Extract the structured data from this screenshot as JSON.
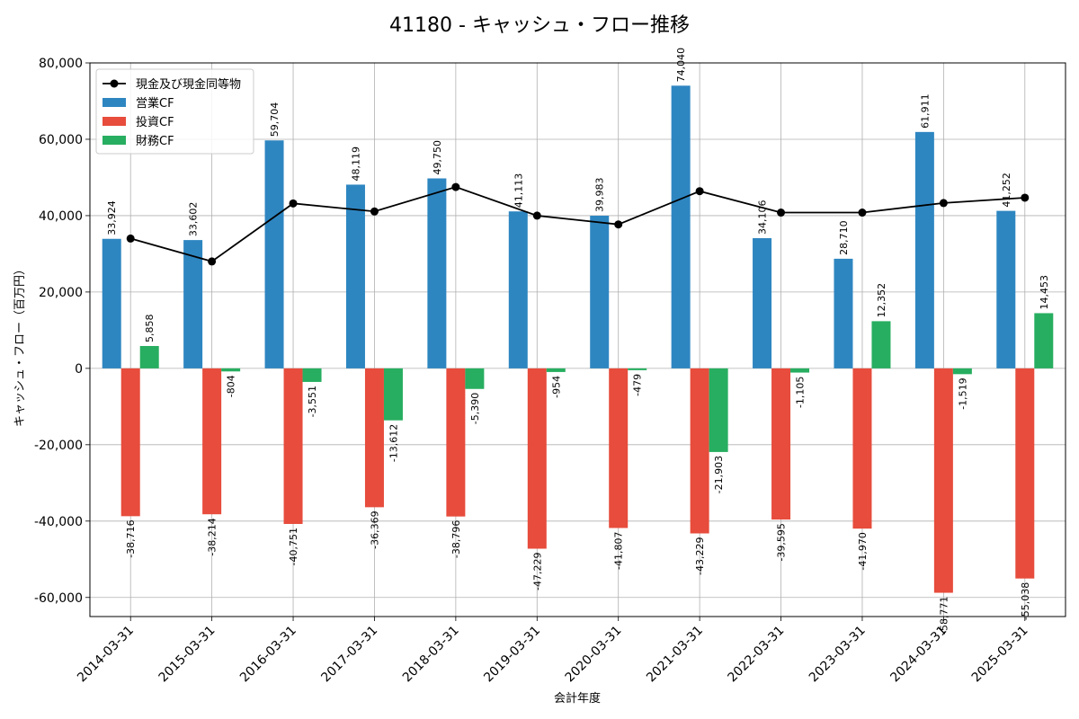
{
  "chart_data": {
    "type": "bar",
    "title": "41180 - キャッシュ・フロー推移",
    "xlabel": "会計年度",
    "ylabel": "キャッシュ・フロー（百万円）",
    "ylim": [
      -65000,
      80000
    ],
    "yticks": [
      -60000,
      -40000,
      -20000,
      0,
      20000,
      40000,
      60000,
      80000
    ],
    "ytick_labels": [
      "-60,000",
      "-40,000",
      "-20,000",
      "0",
      "20,000",
      "40,000",
      "60,000",
      "80,000"
    ],
    "grid": true,
    "legend_position": "top-left",
    "categories": [
      "2014-03-31",
      "2015-03-31",
      "2016-03-31",
      "2017-03-31",
      "2018-03-31",
      "2019-03-31",
      "2020-03-31",
      "2021-03-31",
      "2022-03-31",
      "2023-03-31",
      "2024-03-31",
      "2025-03-31"
    ],
    "series": [
      {
        "name": "営業CF",
        "type": "bar",
        "color": "#2e86c1",
        "values": [
          33924,
          33602,
          59704,
          48119,
          49750,
          41113,
          39983,
          74040,
          34106,
          28710,
          61911,
          41252
        ],
        "labels": [
          "33,924",
          "33,602",
          "59,704",
          "48,119",
          "49,750",
          "41,113",
          "39,983",
          "74,040",
          "34,106",
          "28,710",
          "61,911",
          "41,252"
        ]
      },
      {
        "name": "投資CF",
        "type": "bar",
        "color": "#e74c3c",
        "values": [
          -38716,
          -38214,
          -40751,
          -36369,
          -38796,
          -47229,
          -41807,
          -43229,
          -39595,
          -41970,
          -58771,
          -55038
        ],
        "labels": [
          "-38,716",
          "-38,214",
          "-40,751",
          "-36,369",
          "-38,796",
          "-47,229",
          "-41,807",
          "-43,229",
          "-39,595",
          "-41,970",
          "-58,771",
          "-55,038"
        ]
      },
      {
        "name": "財務CF",
        "type": "bar",
        "color": "#27ae60",
        "values": [
          5858,
          -804,
          -3551,
          -13612,
          -5390,
          -954,
          -479,
          -21903,
          -1105,
          12352,
          -1519,
          14453
        ],
        "labels": [
          "5,858",
          "-804",
          "-3,551",
          "-13,612",
          "-5,390",
          "-954",
          "-479",
          "-21,903",
          "-1,105",
          "12,352",
          "-1,519",
          "14,453"
        ]
      },
      {
        "name": "現金及び現金同等物",
        "type": "line",
        "color": "#000000",
        "values": [
          34000,
          28000,
          43200,
          41100,
          47500,
          40000,
          37700,
          46400,
          40800,
          40800,
          43300,
          44700
        ]
      }
    ]
  }
}
